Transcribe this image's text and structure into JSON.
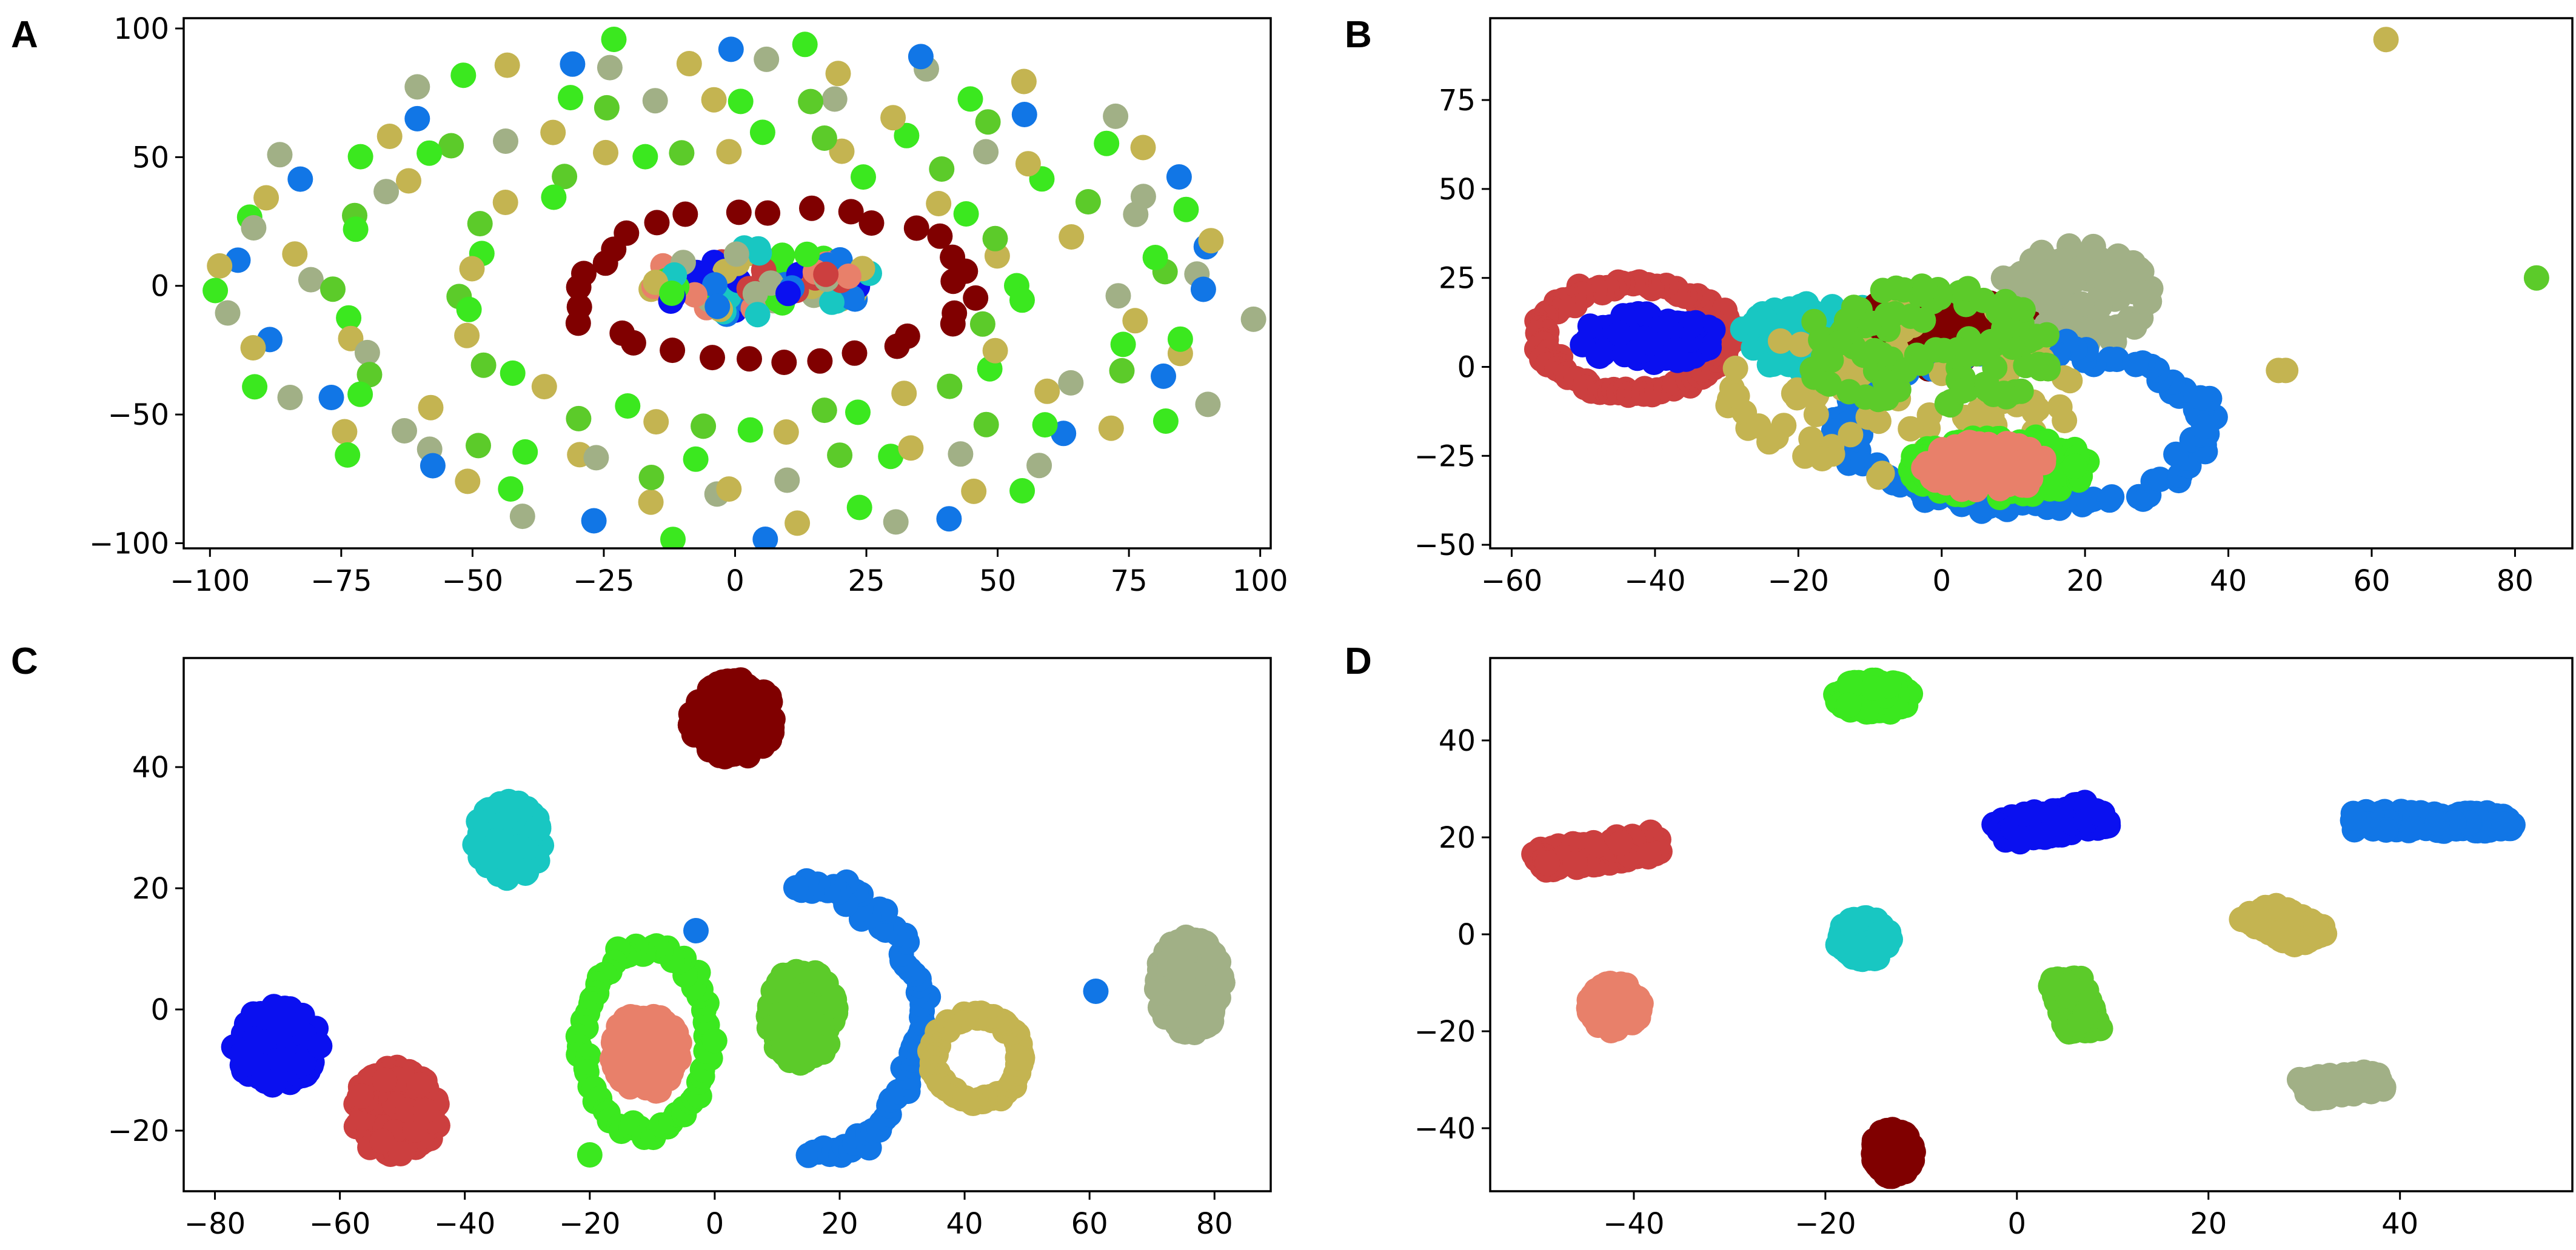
{
  "figure": {
    "title": ""
  },
  "colors": {
    "dark_red": "#800000",
    "red": "#cc3f3f",
    "salmon": "#e8806a",
    "blue": "#0a10f0",
    "azure": "#1176e6",
    "cyan": "#18c7c2",
    "lime": "#3be81f",
    "green": "#5ccb2a",
    "olive": "#c4b451",
    "sage": "#a1b086"
  },
  "chart_data": [
    {
      "panel": "A",
      "type": "scatter",
      "title": "",
      "xlabel": "",
      "ylabel": "",
      "xlim": [
        -105,
        102
      ],
      "ylim": [
        -102,
        104
      ],
      "xticks": [
        -100,
        -75,
        -50,
        -25,
        0,
        25,
        50,
        75,
        100
      ],
      "yticks": [
        -100,
        -50,
        0,
        50,
        100
      ],
      "series": [
        {
          "name": "outer ring",
          "color": "#a1b086",
          "shape": "ring",
          "center": [
            -2,
            0
          ],
          "radius": [
            95,
            92
          ],
          "count": 70,
          "mix": [
            "#a1b086",
            "#1176e6",
            "#c4b451",
            "#3be81f"
          ]
        },
        {
          "name": "middle ring",
          "color": "#5ccb2a",
          "shape": "ring",
          "center": [
            -2,
            0
          ],
          "radius": [
            78,
            72
          ],
          "count": 56,
          "mix": [
            "#5ccb2a",
            "#3be81f",
            "#c4b451",
            "#a1b086"
          ]
        },
        {
          "name": "inner ring",
          "color": "#3be81f",
          "shape": "ring",
          "center": [
            0,
            0
          ],
          "radius": [
            52,
            56
          ],
          "count": 40,
          "mix": [
            "#3be81f",
            "#c4b451",
            "#5ccb2a"
          ]
        },
        {
          "name": "dark red ring",
          "color": "#800000",
          "shape": "ring",
          "center": [
            8,
            0
          ],
          "radius": [
            38,
            30
          ],
          "count": 32,
          "mix": [
            "#800000"
          ]
        },
        {
          "name": "core",
          "color": "#1176e6",
          "shape": "blob",
          "center": [
            5,
            2
          ],
          "radius": [
            22,
            14
          ],
          "count": 90,
          "mix": [
            "#1176e6",
            "#18c7c2",
            "#e8806a",
            "#c4b451",
            "#a1b086",
            "#cc3f3f",
            "#0a10f0",
            "#3be81f"
          ]
        }
      ]
    },
    {
      "panel": "B",
      "type": "scatter",
      "title": "",
      "xlabel": "",
      "ylabel": "",
      "xlim": [
        -63,
        88
      ],
      "ylim": [
        -51,
        98
      ],
      "xticks": [
        -60,
        -40,
        -20,
        0,
        20,
        40,
        60,
        80
      ],
      "yticks": [
        -50,
        -25,
        0,
        25,
        50,
        75
      ],
      "series": [
        {
          "name": "red",
          "color": "#cc3f3f",
          "shape": "ring",
          "center": [
            -43,
            8
          ],
          "radius": [
            13,
            15
          ],
          "count": 120
        },
        {
          "name": "blue",
          "color": "#0a10f0",
          "shape": "blob",
          "center": [
            -41,
            8
          ],
          "radius": [
            10,
            7
          ],
          "count": 120
        },
        {
          "name": "cyan",
          "color": "#18c7c2",
          "shape": "blob",
          "center": [
            -17,
            8
          ],
          "radius": [
            12,
            10
          ],
          "count": 120
        },
        {
          "name": "dark red",
          "color": "#800000",
          "shape": "blob",
          "center": [
            0,
            10
          ],
          "radius": [
            13,
            11
          ],
          "count": 110
        },
        {
          "name": "sage",
          "color": "#a1b086",
          "shape": "blob",
          "center": [
            19,
            20
          ],
          "radius": [
            11,
            15
          ],
          "count": 110
        },
        {
          "name": "azure",
          "color": "#1176e6",
          "shape": "ring",
          "center": [
            12,
            -17
          ],
          "radius": [
            25,
            22
          ],
          "count": 110
        },
        {
          "name": "olive",
          "color": "#c4b451",
          "shape": "blob",
          "center": [
            -5,
            -8
          ],
          "radius": [
            25,
            28
          ],
          "count": 90
        },
        {
          "name": "green",
          "color": "#5ccb2a",
          "shape": "blob",
          "center": [
            -2,
            5
          ],
          "radius": [
            18,
            18
          ],
          "count": 110
        },
        {
          "name": "lime",
          "color": "#3be81f",
          "shape": "blob",
          "center": [
            8,
            -28
          ],
          "radius": [
            13,
            9
          ],
          "count": 130
        },
        {
          "name": "salmon",
          "color": "#e8806a",
          "shape": "blob",
          "center": [
            6,
            -28
          ],
          "radius": [
            9,
            7
          ],
          "count": 90
        },
        {
          "name": "outliers",
          "color": "#c4b451",
          "shape": "points",
          "points": [
            [
              62,
              92,
              "#c4b451"
            ],
            [
              83,
              25,
              "#5ccb2a"
            ],
            [
              48,
              -1,
              "#c4b451"
            ],
            [
              47,
              -1,
              "#c4b451"
            ]
          ]
        }
      ]
    },
    {
      "panel": "C",
      "type": "scatter",
      "title": "",
      "xlabel": "",
      "ylabel": "",
      "xlim": [
        -85,
        89
      ],
      "ylim": [
        -30,
        58
      ],
      "xticks": [
        -80,
        -60,
        -40,
        -20,
        0,
        20,
        40,
        60,
        80
      ],
      "yticks": [
        -20,
        0,
        20,
        40
      ],
      "series": [
        {
          "name": "dark red",
          "color": "#800000",
          "shape": "blob",
          "center": [
            3,
            48
          ],
          "radius": [
            7,
            6.5
          ],
          "count": 160
        },
        {
          "name": "cyan",
          "color": "#18c7c2",
          "shape": "blob",
          "center": [
            -33,
            28
          ],
          "radius": [
            5.5,
            6.5
          ],
          "count": 150
        },
        {
          "name": "blue",
          "color": "#0a10f0",
          "shape": "blob",
          "center": [
            -70,
            -6
          ],
          "radius": [
            7,
            6.5
          ],
          "count": 170
        },
        {
          "name": "red",
          "color": "#cc3f3f",
          "shape": "blob",
          "center": [
            -51,
            -17
          ],
          "radius": [
            7,
            7.5
          ],
          "count": 170
        },
        {
          "name": "lime",
          "color": "#3be81f",
          "shape": "ring",
          "center": [
            -11,
            -5
          ],
          "radius": [
            10,
            15
          ],
          "count": 70
        },
        {
          "name": "salmon",
          "color": "#e8806a",
          "shape": "blob",
          "center": [
            -11,
            -7
          ],
          "radius": [
            5.5,
            7
          ],
          "count": 150
        },
        {
          "name": "green",
          "color": "#5ccb2a",
          "shape": "blob",
          "center": [
            14,
            -1
          ],
          "radius": [
            5.5,
            8
          ],
          "count": 170
        },
        {
          "name": "azure arc",
          "color": "#1176e6",
          "shape": "arc",
          "center": [
            15,
            -2
          ],
          "radius": [
            18,
            22
          ],
          "count": 70
        },
        {
          "name": "olive",
          "color": "#c4b451",
          "shape": "ring",
          "center": [
            42,
            -8
          ],
          "radius": [
            7,
            7
          ],
          "count": 110
        },
        {
          "name": "sage",
          "color": "#a1b086",
          "shape": "blob",
          "center": [
            76,
            4
          ],
          "radius": [
            5.5,
            8
          ],
          "count": 160
        },
        {
          "name": "outliers",
          "color": "#1176e6",
          "shape": "points",
          "points": [
            [
              61,
              3,
              "#1176e6"
            ],
            [
              -20,
              -24,
              "#3be81f"
            ],
            [
              -3,
              13,
              "#1176e6"
            ]
          ]
        }
      ]
    },
    {
      "panel": "D",
      "type": "scatter",
      "title": "",
      "xlabel": "",
      "ylabel": "",
      "xlim": [
        -55,
        58
      ],
      "ylim": [
        -53,
        57
      ],
      "xticks": [
        -40,
        -20,
        0,
        20,
        40
      ],
      "yticks": [
        -40,
        -20,
        0,
        20,
        40
      ],
      "series": [
        {
          "name": "lime",
          "color": "#3be81f",
          "shape": "blob",
          "center": [
            -15,
            49
          ],
          "radius": [
            4,
            3.5
          ],
          "count": 150
        },
        {
          "name": "red",
          "color": "#cc3f3f",
          "shape": "band",
          "from": [
            -50,
            15
          ],
          "to": [
            -37,
            19
          ],
          "width": 2.5,
          "count": 150
        },
        {
          "name": "blue",
          "color": "#0a10f0",
          "shape": "band",
          "from": [
            -2,
            21
          ],
          "to": [
            9,
            25
          ],
          "width": 2.8,
          "count": 150
        },
        {
          "name": "azure",
          "color": "#1176e6",
          "shape": "band",
          "from": [
            35,
            23.5
          ],
          "to": [
            52,
            23
          ],
          "width": 2,
          "count": 160
        },
        {
          "name": "cyan",
          "color": "#18c7c2",
          "shape": "blob",
          "center": [
            -16,
            -1
          ],
          "radius": [
            2.8,
            4.5
          ],
          "count": 120
        },
        {
          "name": "olive",
          "color": "#c4b451",
          "shape": "band",
          "from": [
            25,
            5
          ],
          "to": [
            31,
            -1
          ],
          "width": 2.5,
          "count": 120
        },
        {
          "name": "salmon",
          "color": "#e8806a",
          "shape": "blob",
          "center": [
            -42,
            -15
          ],
          "radius": [
            2.8,
            5
          ],
          "count": 120
        },
        {
          "name": "green",
          "color": "#5ccb2a",
          "shape": "band",
          "from": [
            5,
            -9
          ],
          "to": [
            7,
            -20
          ],
          "width": 1.8,
          "count": 110
        },
        {
          "name": "sage",
          "color": "#a1b086",
          "shape": "band",
          "from": [
            30,
            -32
          ],
          "to": [
            38,
            -30
          ],
          "width": 2.2,
          "count": 120
        },
        {
          "name": "dark red",
          "color": "#800000",
          "shape": "blob",
          "center": [
            -13,
            -45
          ],
          "radius": [
            2.2,
            5
          ],
          "count": 120
        }
      ]
    }
  ]
}
